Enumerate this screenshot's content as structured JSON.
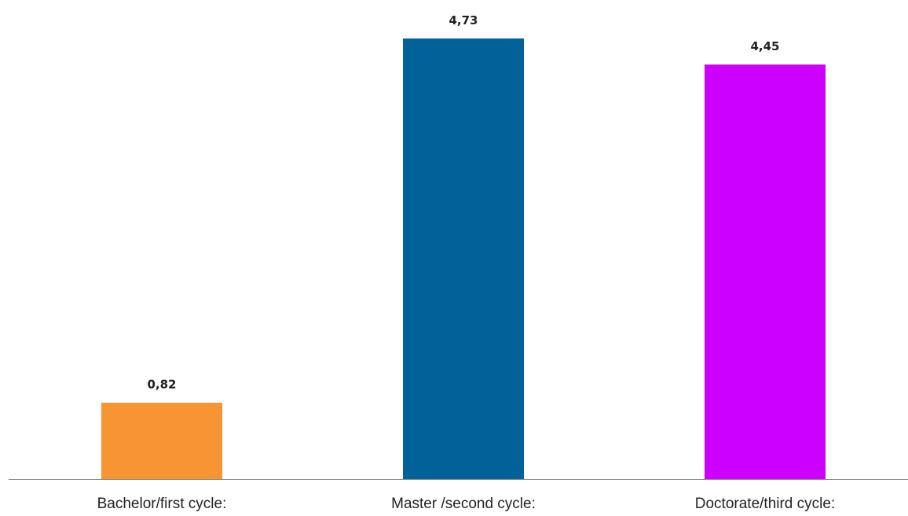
{
  "chart_data": {
    "type": "bar",
    "categories": [
      "Bachelor/first cycle:",
      "Master /second cycle:",
      "Doctorate/third cycle:"
    ],
    "values": [
      0.82,
      4.73,
      4.45
    ],
    "value_labels": [
      "0,82",
      "4,73",
      "4,45"
    ],
    "colors": [
      "#F79433",
      "#006298",
      "#CC00FF"
    ],
    "axis_color": "#8C8C8C",
    "title": "",
    "xlabel": "",
    "ylabel": "",
    "ylim": [
      0,
      4.73
    ],
    "grid": false,
    "legend": "none"
  }
}
